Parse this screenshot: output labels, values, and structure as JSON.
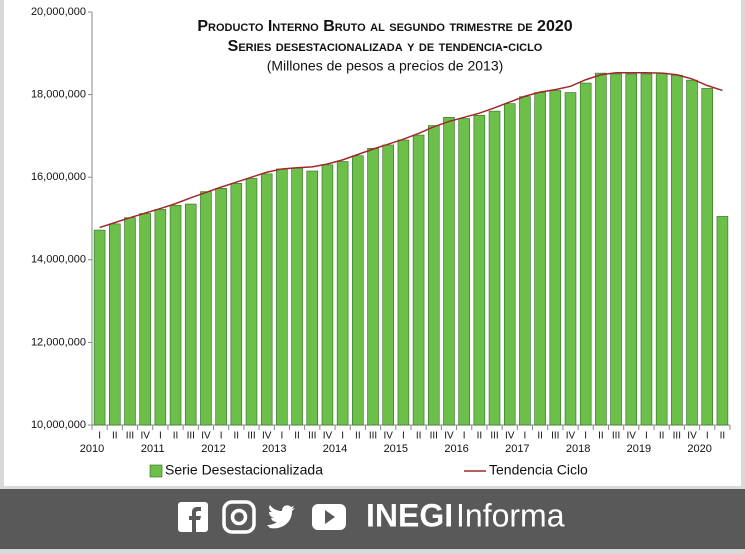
{
  "chart_data": {
    "type": "bar",
    "title": "Producto Interno Bruto al segundo trimestre de 2020",
    "subtitle": "Series desestacionalizada y de tendencia-ciclo",
    "units": "(Millones de pesos a precios de 2013)",
    "categories": [
      "I",
      "II",
      "III",
      "IV",
      "I",
      "II",
      "III",
      "IV",
      "I",
      "II",
      "III",
      "IV",
      "I",
      "II",
      "III",
      "IV",
      "I",
      "II",
      "III",
      "IV",
      "I",
      "II",
      "III",
      "IV",
      "I",
      "II",
      "III",
      "IV",
      "I",
      "II",
      "III",
      "IV",
      "I",
      "II",
      "III",
      "IV",
      "I",
      "II",
      "III",
      "IV",
      "I",
      "II"
    ],
    "category_years": [
      "2010",
      null,
      null,
      null,
      "2011",
      null,
      null,
      null,
      "2012",
      null,
      null,
      null,
      "2013",
      null,
      null,
      null,
      "2014",
      null,
      null,
      null,
      "2015",
      null,
      null,
      null,
      "2016",
      null,
      null,
      null,
      "2017",
      null,
      null,
      null,
      "2018",
      null,
      null,
      null,
      "2019",
      null,
      null,
      null,
      "2020",
      null
    ],
    "series": [
      {
        "name": "Serie Desestacionalizada",
        "type": "bar",
        "color": "#6cc04a",
        "values": [
          14720000,
          14870000,
          15020000,
          15120000,
          15220000,
          15320000,
          15350000,
          15650000,
          15730000,
          15850000,
          15970000,
          16080000,
          16200000,
          16220000,
          16150000,
          16300000,
          16380000,
          16520000,
          16700000,
          16780000,
          16900000,
          17020000,
          17250000,
          17450000,
          17420000,
          17500000,
          17600000,
          17780000,
          17950000,
          18050000,
          18100000,
          18050000,
          18280000,
          18520000,
          18500000,
          18500000,
          18500000,
          18520000,
          18470000,
          18350000,
          18150000,
          15050000
        ]
      },
      {
        "name": "Tendencia Ciclo",
        "type": "line",
        "color": "#a0282d",
        "values": [
          14780000,
          14900000,
          15020000,
          15130000,
          15240000,
          15360000,
          15500000,
          15630000,
          15760000,
          15880000,
          16000000,
          16120000,
          16200000,
          16230000,
          16250000,
          16320000,
          16420000,
          16550000,
          16680000,
          16800000,
          16920000,
          17060000,
          17220000,
          17350000,
          17450000,
          17550000,
          17680000,
          17820000,
          17960000,
          18060000,
          18120000,
          18200000,
          18360000,
          18480000,
          18530000,
          18530000,
          18530000,
          18520000,
          18480000,
          18380000,
          18220000,
          18100000
        ]
      }
    ],
    "ylim": [
      10000000,
      20000000
    ],
    "yticks": [
      {
        "value": 10000000,
        "label": "10,000,000"
      },
      {
        "value": 12000000,
        "label": "12,000,000"
      },
      {
        "value": 14000000,
        "label": "14,000,000"
      },
      {
        "value": 16000000,
        "label": "16,000,000"
      },
      {
        "value": 18000000,
        "label": "18,000,000"
      },
      {
        "value": 20000000,
        "label": "20,000,000"
      }
    ],
    "grid": false,
    "legend": "bottom"
  },
  "footer": {
    "brand": "INEGI",
    "brand_suffix": "Informa"
  }
}
